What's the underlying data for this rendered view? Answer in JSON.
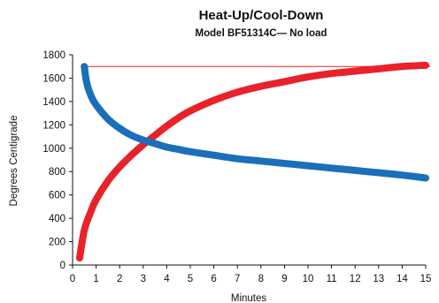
{
  "chart_data": {
    "type": "line",
    "title": "Heat-Up/Cool-Down",
    "subtitle": "Model BF51314C— No load",
    "xlabel": "Minutes",
    "ylabel": "Degrees Centigrade",
    "xlim": [
      0,
      15
    ],
    "ylim": [
      0,
      1800
    ],
    "x_ticks": [
      0,
      1,
      2,
      3,
      4,
      5,
      6,
      7,
      8,
      9,
      10,
      11,
      12,
      13,
      14,
      15
    ],
    "y_ticks": [
      0,
      200,
      400,
      600,
      800,
      1000,
      1200,
      1400,
      1600,
      1800
    ],
    "grid": false,
    "legend": "none",
    "reference_line": {
      "y": 1700,
      "x_range": [
        0.5,
        15.2
      ],
      "color": "#e8222a"
    },
    "series": [
      {
        "color": "#e8222a",
        "x": [
          0.3,
          0.5,
          0.8,
          1,
          1.5,
          2,
          2.5,
          3,
          3.5,
          4,
          4.5,
          5,
          6,
          7,
          8,
          9,
          10,
          11,
          12,
          13,
          14,
          15
        ],
        "y": [
          60,
          300,
          470,
          560,
          720,
          840,
          940,
          1030,
          1110,
          1190,
          1260,
          1320,
          1410,
          1480,
          1530,
          1570,
          1610,
          1640,
          1660,
          1680,
          1700,
          1710
        ]
      },
      {
        "color": "#1a6fba",
        "x": [
          0.5,
          0.6,
          0.8,
          1,
          1.5,
          2,
          2.5,
          3,
          3.5,
          4,
          4.5,
          5,
          6,
          7,
          8,
          9,
          10,
          11,
          12,
          13,
          14,
          15
        ],
        "y": [
          1700,
          1560,
          1440,
          1370,
          1250,
          1170,
          1110,
          1070,
          1040,
          1010,
          990,
          970,
          940,
          910,
          890,
          870,
          850,
          830,
          810,
          790,
          770,
          745
        ]
      }
    ]
  }
}
